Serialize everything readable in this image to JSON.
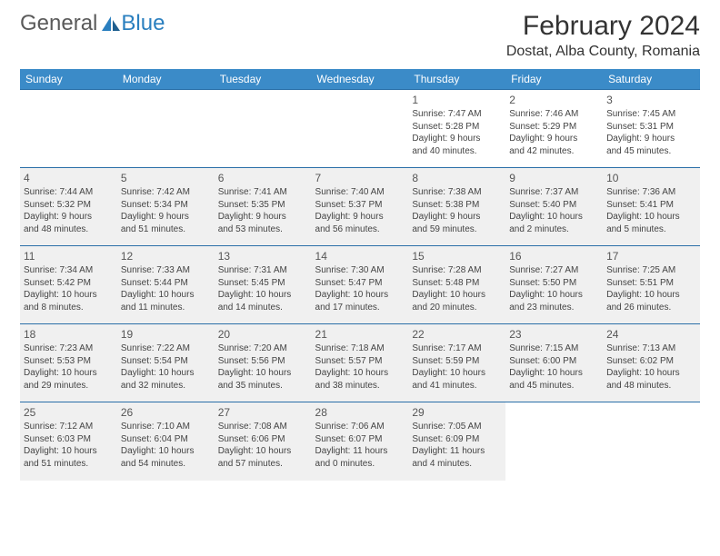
{
  "brand": {
    "part1": "General",
    "part2": "Blue"
  },
  "title": "February 2024",
  "location": "Dostat, Alba County, Romania",
  "colors": {
    "header_bg": "#3b8bc8",
    "header_text": "#ffffff",
    "row_border": "#2a6fa8",
    "shaded_bg": "#f0f0f0",
    "logo_grey": "#5a5a5a",
    "logo_blue": "#2a7fbf"
  },
  "weekdays": [
    "Sunday",
    "Monday",
    "Tuesday",
    "Wednesday",
    "Thursday",
    "Friday",
    "Saturday"
  ],
  "weeks": [
    {
      "shaded": false,
      "days": [
        null,
        null,
        null,
        null,
        {
          "n": "1",
          "sr": "Sunrise: 7:47 AM",
          "ss": "Sunset: 5:28 PM",
          "d1": "Daylight: 9 hours",
          "d2": "and 40 minutes."
        },
        {
          "n": "2",
          "sr": "Sunrise: 7:46 AM",
          "ss": "Sunset: 5:29 PM",
          "d1": "Daylight: 9 hours",
          "d2": "and 42 minutes."
        },
        {
          "n": "3",
          "sr": "Sunrise: 7:45 AM",
          "ss": "Sunset: 5:31 PM",
          "d1": "Daylight: 9 hours",
          "d2": "and 45 minutes."
        }
      ]
    },
    {
      "shaded": true,
      "days": [
        {
          "n": "4",
          "sr": "Sunrise: 7:44 AM",
          "ss": "Sunset: 5:32 PM",
          "d1": "Daylight: 9 hours",
          "d2": "and 48 minutes."
        },
        {
          "n": "5",
          "sr": "Sunrise: 7:42 AM",
          "ss": "Sunset: 5:34 PM",
          "d1": "Daylight: 9 hours",
          "d2": "and 51 minutes."
        },
        {
          "n": "6",
          "sr": "Sunrise: 7:41 AM",
          "ss": "Sunset: 5:35 PM",
          "d1": "Daylight: 9 hours",
          "d2": "and 53 minutes."
        },
        {
          "n": "7",
          "sr": "Sunrise: 7:40 AM",
          "ss": "Sunset: 5:37 PM",
          "d1": "Daylight: 9 hours",
          "d2": "and 56 minutes."
        },
        {
          "n": "8",
          "sr": "Sunrise: 7:38 AM",
          "ss": "Sunset: 5:38 PM",
          "d1": "Daylight: 9 hours",
          "d2": "and 59 minutes."
        },
        {
          "n": "9",
          "sr": "Sunrise: 7:37 AM",
          "ss": "Sunset: 5:40 PM",
          "d1": "Daylight: 10 hours",
          "d2": "and 2 minutes."
        },
        {
          "n": "10",
          "sr": "Sunrise: 7:36 AM",
          "ss": "Sunset: 5:41 PM",
          "d1": "Daylight: 10 hours",
          "d2": "and 5 minutes."
        }
      ]
    },
    {
      "shaded": true,
      "days": [
        {
          "n": "11",
          "sr": "Sunrise: 7:34 AM",
          "ss": "Sunset: 5:42 PM",
          "d1": "Daylight: 10 hours",
          "d2": "and 8 minutes."
        },
        {
          "n": "12",
          "sr": "Sunrise: 7:33 AM",
          "ss": "Sunset: 5:44 PM",
          "d1": "Daylight: 10 hours",
          "d2": "and 11 minutes."
        },
        {
          "n": "13",
          "sr": "Sunrise: 7:31 AM",
          "ss": "Sunset: 5:45 PM",
          "d1": "Daylight: 10 hours",
          "d2": "and 14 minutes."
        },
        {
          "n": "14",
          "sr": "Sunrise: 7:30 AM",
          "ss": "Sunset: 5:47 PM",
          "d1": "Daylight: 10 hours",
          "d2": "and 17 minutes."
        },
        {
          "n": "15",
          "sr": "Sunrise: 7:28 AM",
          "ss": "Sunset: 5:48 PM",
          "d1": "Daylight: 10 hours",
          "d2": "and 20 minutes."
        },
        {
          "n": "16",
          "sr": "Sunrise: 7:27 AM",
          "ss": "Sunset: 5:50 PM",
          "d1": "Daylight: 10 hours",
          "d2": "and 23 minutes."
        },
        {
          "n": "17",
          "sr": "Sunrise: 7:25 AM",
          "ss": "Sunset: 5:51 PM",
          "d1": "Daylight: 10 hours",
          "d2": "and 26 minutes."
        }
      ]
    },
    {
      "shaded": true,
      "days": [
        {
          "n": "18",
          "sr": "Sunrise: 7:23 AM",
          "ss": "Sunset: 5:53 PM",
          "d1": "Daylight: 10 hours",
          "d2": "and 29 minutes."
        },
        {
          "n": "19",
          "sr": "Sunrise: 7:22 AM",
          "ss": "Sunset: 5:54 PM",
          "d1": "Daylight: 10 hours",
          "d2": "and 32 minutes."
        },
        {
          "n": "20",
          "sr": "Sunrise: 7:20 AM",
          "ss": "Sunset: 5:56 PM",
          "d1": "Daylight: 10 hours",
          "d2": "and 35 minutes."
        },
        {
          "n": "21",
          "sr": "Sunrise: 7:18 AM",
          "ss": "Sunset: 5:57 PM",
          "d1": "Daylight: 10 hours",
          "d2": "and 38 minutes."
        },
        {
          "n": "22",
          "sr": "Sunrise: 7:17 AM",
          "ss": "Sunset: 5:59 PM",
          "d1": "Daylight: 10 hours",
          "d2": "and 41 minutes."
        },
        {
          "n": "23",
          "sr": "Sunrise: 7:15 AM",
          "ss": "Sunset: 6:00 PM",
          "d1": "Daylight: 10 hours",
          "d2": "and 45 minutes."
        },
        {
          "n": "24",
          "sr": "Sunrise: 7:13 AM",
          "ss": "Sunset: 6:02 PM",
          "d1": "Daylight: 10 hours",
          "d2": "and 48 minutes."
        }
      ]
    },
    {
      "shaded": true,
      "days": [
        {
          "n": "25",
          "sr": "Sunrise: 7:12 AM",
          "ss": "Sunset: 6:03 PM",
          "d1": "Daylight: 10 hours",
          "d2": "and 51 minutes."
        },
        {
          "n": "26",
          "sr": "Sunrise: 7:10 AM",
          "ss": "Sunset: 6:04 PM",
          "d1": "Daylight: 10 hours",
          "d2": "and 54 minutes."
        },
        {
          "n": "27",
          "sr": "Sunrise: 7:08 AM",
          "ss": "Sunset: 6:06 PM",
          "d1": "Daylight: 10 hours",
          "d2": "and 57 minutes."
        },
        {
          "n": "28",
          "sr": "Sunrise: 7:06 AM",
          "ss": "Sunset: 6:07 PM",
          "d1": "Daylight: 11 hours",
          "d2": "and 0 minutes."
        },
        {
          "n": "29",
          "sr": "Sunrise: 7:05 AM",
          "ss": "Sunset: 6:09 PM",
          "d1": "Daylight: 11 hours",
          "d2": "and 4 minutes."
        },
        null,
        null
      ]
    }
  ]
}
